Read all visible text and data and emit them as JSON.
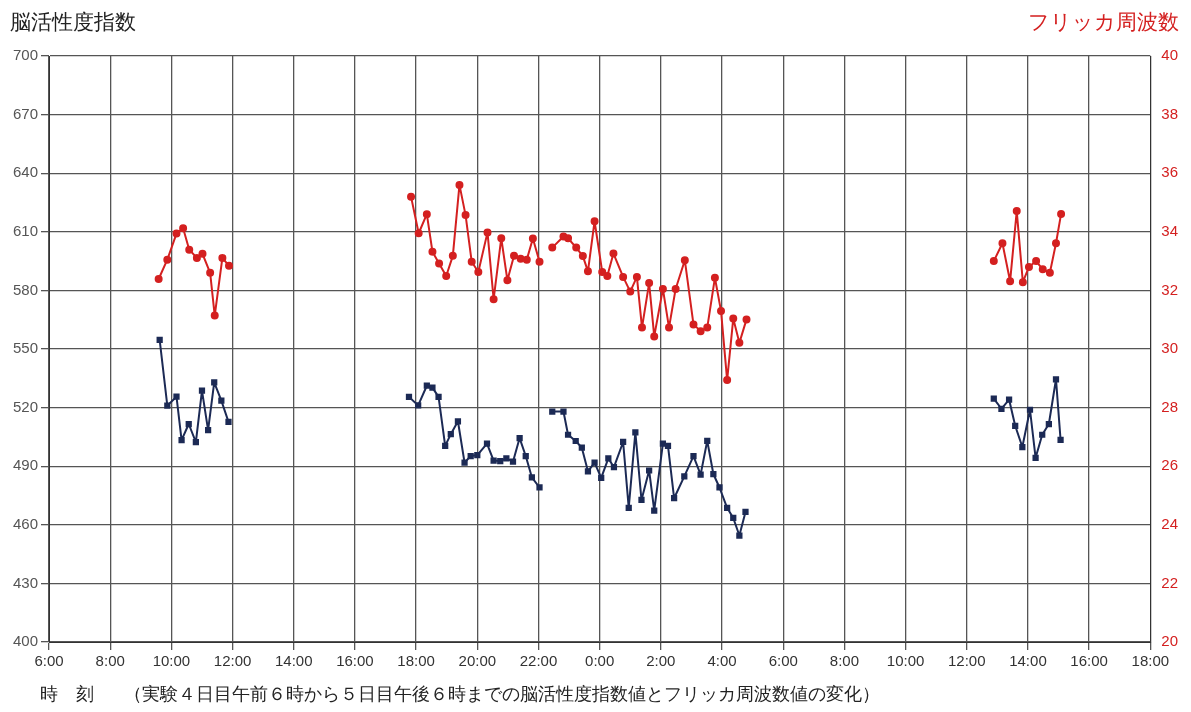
{
  "chart_data": {
    "type": "line",
    "ylabel": "脳活性度指数",
    "y2label": "フリッカ周波数",
    "xlabel": "時　刻",
    "annotations": [
      "（実験４日目午前６時から５日目午後６時までの脳活性度指数値とフリッカ周波数値の変化）"
    ],
    "xlim": [
      "2000-01-04T06:00",
      "2000-01-05T18:00"
    ],
    "xticks": [
      {
        "value": "2000-01-04T06:00",
        "label": "6:00"
      },
      {
        "value": "2000-01-04T08:00",
        "label": "8:00"
      },
      {
        "value": "2000-01-04T10:00",
        "label": "10:00"
      },
      {
        "value": "2000-01-04T12:00",
        "label": "12:00"
      },
      {
        "value": "2000-01-04T14:00",
        "label": "14:00"
      },
      {
        "value": "2000-01-04T16:00",
        "label": "16:00"
      },
      {
        "value": "2000-01-04T18:00",
        "label": "18:00"
      },
      {
        "value": "2000-01-04T20:00",
        "label": "20:00"
      },
      {
        "value": "2000-01-04T22:00",
        "label": "22:00"
      },
      {
        "value": "2000-01-05T00:00",
        "label": "0:00"
      },
      {
        "value": "2000-01-05T02:00",
        "label": "2:00"
      },
      {
        "value": "2000-01-05T04:00",
        "label": "4:00"
      },
      {
        "value": "2000-01-05T06:00",
        "label": "6:00"
      },
      {
        "value": "2000-01-05T08:00",
        "label": "8:00"
      },
      {
        "value": "2000-01-05T10:00",
        "label": "10:00"
      },
      {
        "value": "2000-01-05T12:00",
        "label": "12:00"
      },
      {
        "value": "2000-01-05T14:00",
        "label": "14:00"
      },
      {
        "value": "2000-01-05T16:00",
        "label": "16:00"
      },
      {
        "value": "2000-01-05T18:00",
        "label": "18:00"
      }
    ],
    "ylim": [
      400,
      700
    ],
    "yticks": [
      400,
      430,
      460,
      490,
      520,
      550,
      580,
      610,
      640,
      670,
      700
    ],
    "y2lim": [
      20,
      40
    ],
    "y2ticks": [
      20,
      22,
      24,
      26,
      28,
      30,
      32,
      34,
      36,
      38,
      40
    ],
    "grid": true,
    "legend": false,
    "line_style": "solid",
    "series": [
      {
        "color": "#1c2a55",
        "marker": "square",
        "axis": "y",
        "x": [
          "2000-01-04T09:37",
          "2000-01-04T09:52",
          "2000-01-04T10:10",
          "2000-01-04T10:20",
          "2000-01-04T10:34",
          "2000-01-04T10:48",
          "2000-01-04T11:00",
          "2000-01-04T11:12",
          "2000-01-04T11:24",
          "2000-01-04T11:38",
          "2000-01-04T11:52",
          "2000-01-04T15:00",
          "2000-01-04T17:46",
          "2000-01-04T18:04",
          "2000-01-04T18:21",
          "2000-01-04T18:32",
          "2000-01-04T18:44",
          "2000-01-04T18:57",
          "2000-01-04T19:08",
          "2000-01-04T19:22",
          "2000-01-04T19:35",
          "2000-01-04T19:47",
          "2000-01-04T20:00",
          "2000-01-04T20:19",
          "2000-01-04T20:32",
          "2000-01-04T20:45",
          "2000-01-04T20:57",
          "2000-01-04T21:10",
          "2000-01-04T21:23",
          "2000-01-04T21:35",
          "2000-01-04T21:47",
          "2000-01-04T22:02",
          "2000-01-04T22:12",
          "2000-01-04T22:27",
          "2000-01-04T22:49",
          "2000-01-04T22:58",
          "2000-01-04T23:13",
          "2000-01-04T23:25",
          "2000-01-04T23:37",
          "2000-01-04T23:50",
          "2000-01-05T00:03",
          "2000-01-05T00:17",
          "2000-01-05T00:28",
          "2000-01-05T00:46",
          "2000-01-05T00:57",
          "2000-01-05T01:10",
          "2000-01-05T01:22",
          "2000-01-05T01:37",
          "2000-01-05T01:47",
          "2000-01-05T02:04",
          "2000-01-05T02:14",
          "2000-01-05T02:26",
          "2000-01-05T02:46",
          "2000-01-05T03:04",
          "2000-01-05T03:18",
          "2000-01-05T03:31",
          "2000-01-05T03:43",
          "2000-01-05T03:55",
          "2000-01-05T04:10",
          "2000-01-05T04:22",
          "2000-01-05T04:34",
          "2000-01-05T04:46",
          "2000-01-05T09:00",
          "2000-01-05T12:53",
          "2000-01-05T13:08",
          "2000-01-05T13:23",
          "2000-01-05T13:35",
          "2000-01-05T13:49",
          "2000-01-05T14:04",
          "2000-01-05T14:15",
          "2000-01-05T14:28",
          "2000-01-05T14:41",
          "2000-01-05T14:55",
          "2000-01-05T15:04"
        ],
        "values": [
          554.7,
          521,
          525.6,
          503.3,
          511.6,
          502.3,
          528.7,
          508.5,
          532.9,
          523.6,
          512.7,
          null,
          525.5,
          521.1,
          531.2,
          530.2,
          525.5,
          500.4,
          506.4,
          513,
          491.8,
          495.2,
          495.7,
          501.6,
          492.9,
          492.6,
          494,
          492.3,
          504.4,
          495.2,
          484.3,
          479.1,
          null,
          518,
          518,
          506.1,
          502.9,
          499.5,
          487.4,
          491.8,
          484,
          494,
          489.5,
          502.4,
          468.7,
          507.3,
          472.7,
          487.8,
          467.3,
          501.6,
          500.4,
          473.6,
          484.8,
          495.2,
          485.7,
          503,
          486,
          479.1,
          468.7,
          463.5,
          454.5,
          466.6,
          null,
          524.6,
          519.4,
          524.1,
          510.7,
          499.8,
          518.9,
          494.3,
          506.1,
          511.6,
          534.5,
          503.5
        ]
      },
      {
        "color": "#d42020",
        "marker": "circle",
        "axis": "y2",
        "x": [
          "2000-01-04T09:35",
          "2000-01-04T09:52",
          "2000-01-04T10:10",
          "2000-01-04T10:23",
          "2000-01-04T10:35",
          "2000-01-04T10:50",
          "2000-01-04T11:01",
          "2000-01-04T11:16",
          "2000-01-04T11:25",
          "2000-01-04T11:40",
          "2000-01-04T11:53",
          "2000-01-04T15:00",
          "2000-01-04T17:50",
          "2000-01-04T18:05",
          "2000-01-04T18:21",
          "2000-01-04T18:32",
          "2000-01-04T18:45",
          "2000-01-04T18:59",
          "2000-01-04T19:12",
          "2000-01-04T19:25",
          "2000-01-04T19:37",
          "2000-01-04T19:49",
          "2000-01-04T20:02",
          "2000-01-04T20:20",
          "2000-01-04T20:32",
          "2000-01-04T20:47",
          "2000-01-04T20:59",
          "2000-01-04T21:12",
          "2000-01-04T21:25",
          "2000-01-04T21:37",
          "2000-01-04T21:49",
          "2000-01-04T22:02",
          "2000-01-04T22:12",
          "2000-01-04T22:27",
          "2000-01-04T22:49",
          "2000-01-04T22:58",
          "2000-01-04T23:14",
          "2000-01-04T23:27",
          "2000-01-04T23:37",
          "2000-01-04T23:50",
          "2000-01-05T00:05",
          "2000-01-05T00:15",
          "2000-01-05T00:27",
          "2000-01-05T00:46",
          "2000-01-05T01:00",
          "2000-01-05T01:13",
          "2000-01-05T01:23",
          "2000-01-05T01:37",
          "2000-01-05T01:47",
          "2000-01-05T02:04",
          "2000-01-05T02:16",
          "2000-01-05T02:29",
          "2000-01-05T02:47",
          "2000-01-05T03:04",
          "2000-01-05T03:18",
          "2000-01-05T03:31",
          "2000-01-05T03:46",
          "2000-01-05T03:58",
          "2000-01-05T04:10",
          "2000-01-05T04:22",
          "2000-01-05T04:34",
          "2000-01-05T04:48",
          "2000-01-05T09:00",
          "2000-01-05T12:53",
          "2000-01-05T13:10",
          "2000-01-05T13:25",
          "2000-01-05T13:38",
          "2000-01-05T13:50",
          "2000-01-05T14:02",
          "2000-01-05T14:16",
          "2000-01-05T14:29",
          "2000-01-05T14:43",
          "2000-01-05T14:55",
          "2000-01-05T15:05"
        ],
        "values": [
          32.39,
          33.05,
          33.94,
          34.12,
          33.39,
          33.11,
          33.25,
          32.6,
          31.14,
          33.11,
          32.84,
          null,
          35.2,
          33.95,
          34.6,
          33.32,
          32.92,
          32.49,
          33.18,
          35.6,
          34.57,
          32.98,
          32.63,
          33.98,
          31.7,
          33.78,
          32.35,
          33.18,
          33.08,
          33.05,
          33.77,
          32.98,
          null,
          33.46,
          33.84,
          33.78,
          33.46,
          33.17,
          32.65,
          34.36,
          32.63,
          32.49,
          33.26,
          32.46,
          31.96,
          32.46,
          30.73,
          32.25,
          30.43,
          32.05,
          30.73,
          32.05,
          33.03,
          30.84,
          30.61,
          30.73,
          32.43,
          31.3,
          28.94,
          31.04,
          30.21,
          31.01,
          null,
          33.0,
          33.61,
          32.31,
          34.71,
          32.28,
          32.8,
          33.0,
          32.72,
          32.6,
          33.61,
          34.61
        ]
      }
    ]
  }
}
